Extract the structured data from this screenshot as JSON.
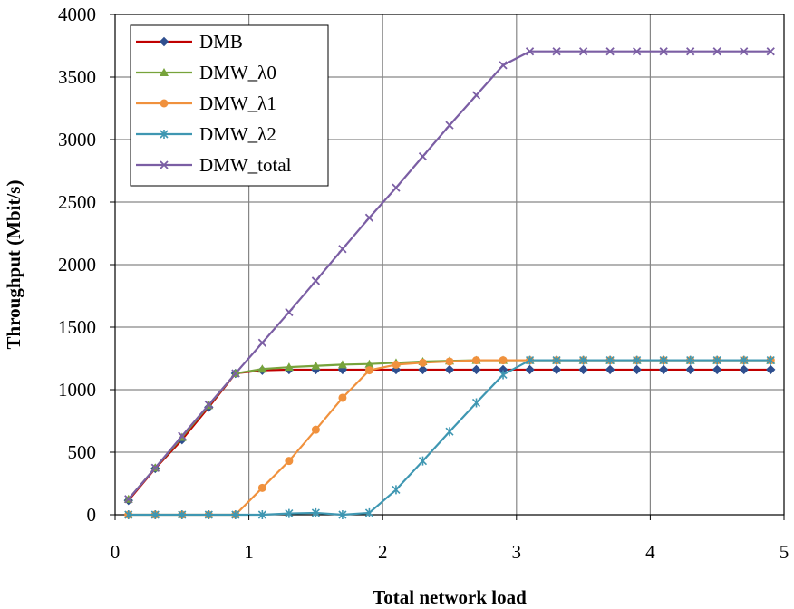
{
  "chart_data": {
    "type": "line",
    "title": "",
    "xlabel": "Total network load",
    "ylabel": "Throughput (Mbit/s)",
    "xlim": [
      0,
      5
    ],
    "ylim": [
      0,
      4000
    ],
    "xticks": [
      "0",
      "1",
      "2",
      "3",
      "4",
      "5"
    ],
    "yticks": [
      "0",
      "500",
      "1000",
      "1500",
      "2000",
      "2500",
      "3000",
      "3500",
      "4000"
    ],
    "grid": true,
    "legend_position": "top-left",
    "x": [
      0.1,
      0.3,
      0.5,
      0.7,
      0.9,
      1.1,
      1.3,
      1.5,
      1.7,
      1.9,
      2.1,
      2.3,
      2.5,
      2.7,
      2.9,
      3.1,
      3.3,
      3.5,
      3.7,
      3.9,
      4.1,
      4.3,
      4.5,
      4.7,
      4.9
    ],
    "series": [
      {
        "name": "DMB",
        "color": "#c00000",
        "marker": "diamond",
        "values": [
          115,
          370,
          600,
          860,
          1130,
          1155,
          1160,
          1160,
          1160,
          1160,
          1160,
          1160,
          1160,
          1160,
          1160,
          1160,
          1160,
          1160,
          1160,
          1160,
          1160,
          1160,
          1160,
          1160,
          1160
        ]
      },
      {
        "name": "DMW_λ0",
        "color": "#77a33b",
        "marker": "triangle",
        "values": [
          125,
          375,
          620,
          875,
          1130,
          1165,
          1180,
          1190,
          1200,
          1205,
          1215,
          1225,
          1230,
          1235,
          1235,
          1235,
          1235,
          1235,
          1235,
          1235,
          1235,
          1235,
          1235,
          1235,
          1235
        ]
      },
      {
        "name": "DMW_λ1",
        "color": "#f0913d",
        "marker": "circle",
        "values": [
          0,
          0,
          0,
          0,
          0,
          215,
          430,
          680,
          935,
          1155,
          1200,
          1215,
          1225,
          1235,
          1235,
          1235,
          1235,
          1235,
          1235,
          1235,
          1235,
          1235,
          1235,
          1235,
          1235
        ]
      },
      {
        "name": "DMW_λ2",
        "color": "#3f97b2",
        "marker": "star",
        "values": [
          0,
          0,
          0,
          0,
          0,
          0,
          10,
          15,
          0,
          15,
          200,
          430,
          665,
          895,
          1120,
          1235,
          1235,
          1235,
          1235,
          1235,
          1235,
          1235,
          1235,
          1235,
          1235
        ]
      },
      {
        "name": "DMW_total",
        "color": "#7b5ea4",
        "marker": "x",
        "values": [
          125,
          375,
          630,
          880,
          1130,
          1375,
          1620,
          1870,
          2125,
          2375,
          2615,
          2865,
          3115,
          3355,
          3595,
          3705,
          3705,
          3705,
          3705,
          3705,
          3705,
          3705,
          3705,
          3705,
          3705
        ]
      }
    ]
  }
}
